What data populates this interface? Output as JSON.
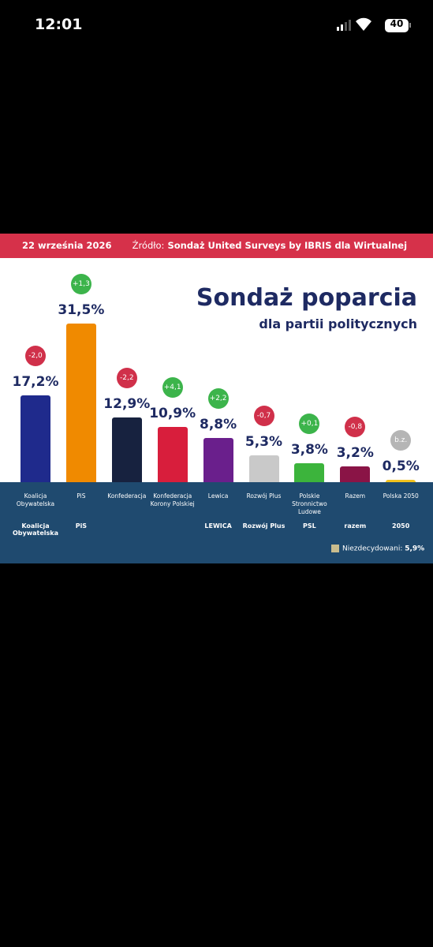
{
  "status_bar": {
    "time": "12:01",
    "battery": "40"
  },
  "header": {
    "date": "22 września 2026",
    "source_label": "Źródło:",
    "source": "Sondaż United Surveys by IBRIS dla Wirtualnej Polski"
  },
  "chart_data": {
    "type": "bar",
    "title": "Sondaż poparcia",
    "subtitle": "dla partii politycznych",
    "categories": [
      "Koalicja Obywatelska",
      "PiS",
      "Konfederacja",
      "Konfederacja Korony Polskiej",
      "Lewica",
      "Rozwój Plus",
      "Polskie Stronnictwo Ludowe",
      "Razem",
      "Polska 2050"
    ],
    "values": [
      17.2,
      31.5,
      12.9,
      10.9,
      8.8,
      5.3,
      3.8,
      3.2,
      0.5
    ],
    "value_labels": [
      "17,2%",
      "31,5%",
      "12,9%",
      "10,9%",
      "8,8%",
      "5,3%",
      "3,8%",
      "3,2%",
      "0,5%"
    ],
    "colors": [
      "#1f2a8c",
      "#f08a00",
      "#17223f",
      "#d81e3c",
      "#6a1f8c",
      "#c9c9c9",
      "#3cb43c",
      "#8a1446",
      "#f2c21e"
    ],
    "changes": [
      -2.0,
      1.3,
      -2.2,
      4.1,
      2.2,
      -0.7,
      0.1,
      -0.8,
      null
    ],
    "change_labels": [
      "-2,0",
      "+1,3",
      "-2,2",
      "+4,1",
      "+2,2",
      "-0,7",
      "+0,1",
      "-0,8",
      "b.z."
    ],
    "logo_labels": [
      "Koalicja Obywatelska",
      "PiS",
      null,
      null,
      "LEWICA",
      "Rozwój Plus",
      "PSL",
      "razem",
      "2050"
    ],
    "undecided": {
      "label": "Niezdecydowani:",
      "value": 5.9,
      "value_label": "5,9%",
      "color": "#c9bd8e"
    }
  }
}
